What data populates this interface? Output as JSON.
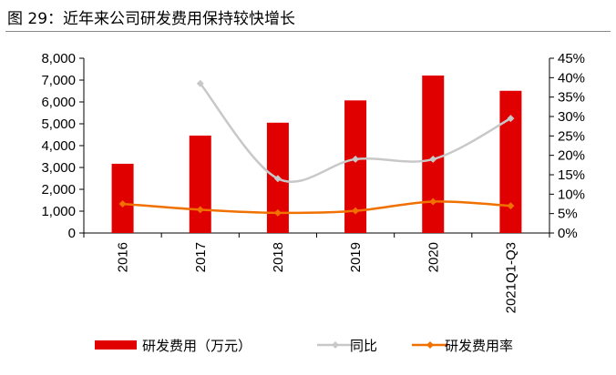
{
  "title": "图 29：近年来公司研发费用保持较快增长",
  "chart_data": {
    "type": "bar",
    "categories": [
      "2016",
      "2017",
      "2018",
      "2019",
      "2020",
      "2021Q1-Q3"
    ],
    "series": [
      {
        "name": "研发费用（万元）",
        "type": "bar",
        "axis": "left",
        "color": "#E00000",
        "values": [
          3170,
          4460,
          5050,
          6070,
          7210,
          6510
        ]
      },
      {
        "name": "同比",
        "type": "line",
        "axis": "right",
        "color": "#C8C8C8",
        "values": [
          null,
          38.5,
          14.0,
          19.0,
          19.0,
          29.5
        ]
      },
      {
        "name": "研发费用率",
        "type": "line",
        "axis": "right",
        "color": "#F07000",
        "values": [
          7.5,
          6.0,
          5.2,
          5.7,
          8.1,
          7.0
        ]
      }
    ],
    "yleft": {
      "range": [
        0,
        8000
      ],
      "ticks": [
        "0",
        "1,000",
        "2,000",
        "3,000",
        "4,000",
        "5,000",
        "6,000",
        "7,000",
        "8,000"
      ]
    },
    "yright": {
      "range": [
        0,
        45
      ],
      "ticks": [
        "0%",
        "5%",
        "10%",
        "15%",
        "20%",
        "25%",
        "30%",
        "35%",
        "40%",
        "45%"
      ]
    },
    "grid": false,
    "legend": "bottom"
  }
}
